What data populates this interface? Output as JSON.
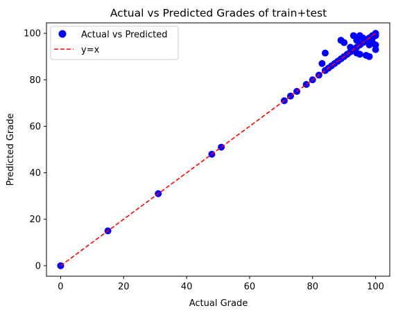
{
  "chart_data": {
    "type": "scatter",
    "title": "Actual vs Predicted Grades of train+test",
    "xlabel": "Actual Grade",
    "ylabel": "Predicted Grade",
    "xlim": [
      -4.5,
      104.5
    ],
    "ylim": [
      -4.5,
      104.5
    ],
    "xticks": [
      0,
      20,
      40,
      60,
      80,
      100
    ],
    "yticks": [
      0,
      20,
      40,
      60,
      80,
      100
    ],
    "grid": false,
    "legend_position": "top-left",
    "series": [
      {
        "name": "Actual vs Predicted",
        "kind": "scatter",
        "color": "#0000ff",
        "points": [
          [
            0,
            0
          ],
          [
            15,
            15
          ],
          [
            31,
            31
          ],
          [
            48,
            48
          ],
          [
            51,
            51
          ],
          [
            71,
            71
          ],
          [
            73,
            73
          ],
          [
            75,
            75
          ],
          [
            78,
            78
          ],
          [
            80,
            80
          ],
          [
            82,
            82
          ],
          [
            83,
            87
          ],
          [
            84,
            84
          ],
          [
            84,
            91.5
          ],
          [
            85,
            85
          ],
          [
            86,
            86
          ],
          [
            87,
            87
          ],
          [
            88,
            88
          ],
          [
            89,
            89
          ],
          [
            89,
            97
          ],
          [
            90,
            90
          ],
          [
            90,
            96
          ],
          [
            91,
            91
          ],
          [
            92,
            92
          ],
          [
            92,
            94
          ],
          [
            93,
            93
          ],
          [
            93,
            99
          ],
          [
            94,
            94
          ],
          [
            94,
            97
          ],
          [
            94,
            91.5
          ],
          [
            95,
            95
          ],
          [
            95,
            99
          ],
          [
            95,
            91
          ],
          [
            96,
            96
          ],
          [
            96,
            98
          ],
          [
            97,
            97
          ],
          [
            97,
            90.5
          ],
          [
            98,
            98
          ],
          [
            98,
            95
          ],
          [
            98,
            90
          ],
          [
            99,
            99
          ],
          [
            99,
            98
          ],
          [
            99,
            96
          ],
          [
            100,
            100
          ],
          [
            100,
            99
          ],
          [
            100,
            95
          ],
          [
            100,
            93
          ]
        ]
      },
      {
        "name": "y=x",
        "kind": "line",
        "style": "dashed",
        "color": "#ff0000",
        "points": [
          [
            0,
            0
          ],
          [
            100,
            100
          ]
        ]
      }
    ]
  }
}
